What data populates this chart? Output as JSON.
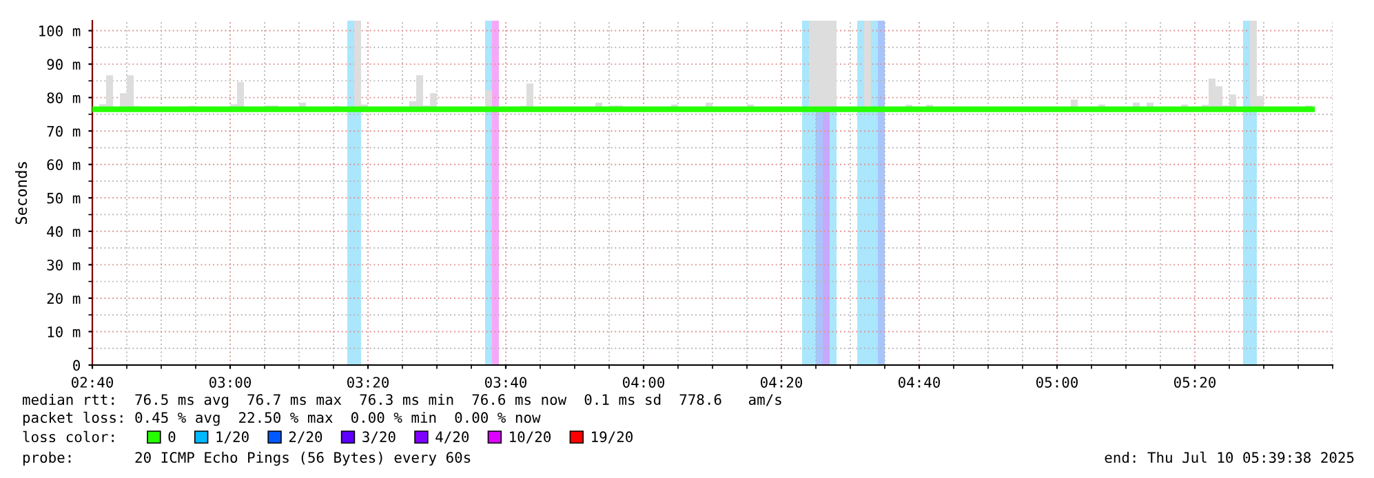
{
  "chart_data": {
    "type": "step",
    "ylabel": "Seconds",
    "x": [
      "2025-07-10T02:40",
      "2025-07-10T02:41",
      "2025-07-10T02:42",
      "2025-07-10T02:43",
      "2025-07-10T02:44",
      "2025-07-10T02:45",
      "2025-07-10T02:46",
      "2025-07-10T02:47",
      "2025-07-10T02:54",
      "2025-07-10T02:55",
      "2025-07-10T02:56",
      "2025-07-10T02:57",
      "2025-07-10T02:58",
      "2025-07-10T03:00",
      "2025-07-10T03:01",
      "2025-07-10T03:02",
      "2025-07-10T03:03",
      "2025-07-10T03:05",
      "2025-07-10T03:07",
      "2025-07-10T03:10",
      "2025-07-10T03:11",
      "2025-07-10T03:15",
      "2025-07-10T03:16",
      "2025-07-10T03:18",
      "2025-07-10T03:19",
      "2025-07-10T03:20",
      "2025-07-10T03:26",
      "2025-07-10T03:27",
      "2025-07-10T03:28",
      "2025-07-10T03:29",
      "2025-07-10T03:30",
      "2025-07-10T03:37",
      "2025-07-10T03:38",
      "2025-07-10T03:42",
      "2025-07-10T03:43",
      "2025-07-10T03:44",
      "2025-07-10T03:53",
      "2025-07-10T03:54",
      "2025-07-10T03:55",
      "2025-07-10T03:57",
      "2025-07-10T04:04",
      "2025-07-10T04:05",
      "2025-07-10T04:09",
      "2025-07-10T04:10",
      "2025-07-10T04:15",
      "2025-07-10T04:16",
      "2025-07-10T04:24",
      "2025-07-10T04:28",
      "2025-07-10T04:32",
      "2025-07-10T04:33",
      "2025-07-10T04:38",
      "2025-07-10T04:39",
      "2025-07-10T04:41",
      "2025-07-10T04:42",
      "2025-07-10T05:02",
      "2025-07-10T05:03",
      "2025-07-10T05:06",
      "2025-07-10T05:07",
      "2025-07-10T05:11",
      "2025-07-10T05:12",
      "2025-07-10T05:13",
      "2025-07-10T05:14",
      "2025-07-10T05:18",
      "2025-07-10T05:19",
      "2025-07-10T05:21",
      "2025-07-10T05:22",
      "2025-07-10T05:23",
      "2025-07-10T05:24",
      "2025-07-10T05:25",
      "2025-07-10T05:26",
      "2025-07-10T05:28",
      "2025-07-10T05:29",
      "2025-07-10T05:30",
      "2025-07-10T05:36",
      "2025-07-10T05:37"
    ],
    "series": [
      {
        "name": "0",
        "color": "#26ff00",
        "values": [
          76.5,
          76.5,
          76.5,
          76.5,
          76.5,
          76.5,
          76.5,
          76.5,
          76.5,
          76.5,
          76.5,
          76.5,
          76.5,
          76.5,
          76.5,
          76.5,
          76.5,
          76.5,
          76.5,
          76.5,
          76.5,
          76.5,
          76.5,
          76.5,
          76.5,
          76.5,
          76.5,
          76.5,
          76.5,
          76.5,
          76.5,
          76.5,
          76.5,
          76.5,
          76.5,
          76.5,
          76.5,
          76.5,
          76.5,
          76.5,
          76.5,
          76.5,
          76.5,
          76.5,
          76.5,
          76.5,
          76.5,
          76.5,
          76.5,
          76.5,
          76.5,
          76.5,
          76.5,
          76.5,
          76.5,
          76.5,
          76.5,
          76.5,
          76.5,
          76.5,
          76.5,
          76.5,
          76.5,
          76.5,
          76.5,
          76.5,
          76.5,
          76.5,
          76.5,
          76.5,
          76.5,
          76.5,
          76.5,
          76.5,
          76.5
        ],
        "lower": [
          76.5,
          76.5,
          76.5,
          76.5,
          76.5,
          76.5,
          76.5,
          76.5,
          76.5,
          76.5,
          76.5,
          76.5,
          76.5,
          76.5,
          76.5,
          76.5,
          76.5,
          76.5,
          76.5,
          76.5,
          76.5,
          76.5,
          76.5,
          76.5,
          76.5,
          76.5,
          76.5,
          76.5,
          76.5,
          76.5,
          76.5,
          76.5,
          76.5,
          76.5,
          76.5,
          76.5,
          76.5,
          76.5,
          76.5,
          76.5,
          76.5,
          76.5,
          76.5,
          76.5,
          76.5,
          76.5,
          76.5,
          76.5,
          76.5,
          76.5,
          76.5,
          76.5,
          76.5,
          76.5,
          76.5,
          76.5,
          76.5,
          76.5,
          76.5,
          76.5,
          76.5,
          76.5,
          76.5,
          76.5,
          76.5,
          76.5,
          76.5,
          76.5,
          76.5,
          76.5,
          76.5,
          76.5,
          76.5,
          76.5,
          76.5
        ],
        "upper": [
          76.5,
          78,
          86.7,
          77,
          81.3,
          86.7,
          77.4,
          76.5,
          77.5,
          77.3,
          76.5,
          77.3,
          76.5,
          78,
          84.6,
          77.3,
          76.5,
          77.6,
          76.5,
          78.5,
          76.5,
          77.5,
          76.5,
          103,
          77.9,
          76.5,
          78.9,
          86.7,
          77.6,
          81.3,
          76.5,
          82.2,
          76.5,
          77.5,
          84.2,
          76.5,
          78.5,
          76.5,
          77.6,
          76.5,
          77.9,
          76.5,
          78.5,
          76.5,
          77.9,
          76.5,
          103,
          76.5,
          103,
          76.5,
          77.8,
          76.5,
          77.8,
          76.5,
          79.4,
          76.5,
          77.9,
          76.5,
          78.5,
          76.5,
          78.5,
          76.5,
          77.9,
          76.5,
          77.8,
          85.7,
          83.4,
          77.6,
          80.9,
          76.5,
          103,
          80.5,
          76.5,
          77.6,
          76.5
        ]
      },
      {
        "name": "1/20",
        "color": "#00b8ff",
        "values": [
          null,
          null,
          null,
          null,
          null,
          null,
          null,
          null,
          null,
          null,
          null,
          null,
          null,
          null,
          null,
          null,
          null,
          null,
          null,
          null,
          null,
          null,
          null,
          null,
          null,
          null,
          null,
          null,
          null,
          null,
          null,
          null,
          null,
          null,
          null,
          null,
          null,
          null,
          null,
          null,
          null,
          null,
          null,
          null,
          null,
          null,
          null,
          null,
          null,
          null,
          null,
          null,
          null,
          null,
          null,
          null,
          null,
          null,
          null,
          null,
          null,
          null,
          null,
          null,
          null,
          null,
          null,
          null,
          null,
          null,
          null,
          null,
          null,
          null,
          null
        ]
      },
      {
        "name": "2/20",
        "color": "#0059ff",
        "values": [
          null,
          null,
          null,
          null,
          null,
          null,
          null,
          null,
          null,
          null,
          null,
          null,
          null,
          null,
          null,
          null,
          null,
          null,
          null,
          null,
          null,
          null,
          null,
          null,
          null,
          null,
          null,
          null,
          null,
          null,
          null,
          null,
          null,
          null,
          null,
          null,
          null,
          null,
          null,
          null,
          null,
          null,
          null,
          null,
          null,
          null,
          null,
          null,
          null,
          null,
          null,
          null,
          null,
          null,
          null,
          null,
          null,
          null,
          null,
          null,
          null,
          null,
          null,
          null,
          null,
          null,
          null,
          null,
          null,
          null,
          null,
          null,
          null,
          null,
          null
        ]
      },
      {
        "name": "3/20",
        "color": "#5e00ff",
        "values": [
          null,
          null,
          null,
          null,
          null,
          null,
          null,
          null,
          null,
          null,
          null,
          null,
          null,
          null,
          null,
          null,
          null,
          null,
          null,
          null,
          null,
          null,
          null,
          null,
          null,
          null,
          null,
          null,
          null,
          null,
          null,
          null,
          null,
          null,
          null,
          null,
          null,
          null,
          null,
          null,
          null,
          null,
          null,
          null,
          null,
          null,
          null,
          null,
          null,
          null,
          null,
          null,
          null,
          null,
          null,
          null,
          null,
          null,
          null,
          null,
          null,
          null,
          null,
          null,
          null,
          null,
          null,
          null,
          null,
          null,
          null,
          null,
          null,
          null,
          null
        ]
      },
      {
        "name": "4/20",
        "color": "#7e00ff",
        "values": [
          null,
          null,
          null,
          null,
          null,
          null,
          null,
          null,
          null,
          null,
          null,
          null,
          null,
          null,
          null,
          null,
          null,
          null,
          null,
          null,
          null,
          null,
          null,
          null,
          null,
          null,
          null,
          null,
          null,
          null,
          null,
          null,
          null,
          null,
          null,
          null,
          null,
          null,
          null,
          null,
          null,
          null,
          null,
          null,
          null,
          null,
          null,
          null,
          null,
          null,
          null,
          null,
          null,
          null,
          null,
          null,
          null,
          null,
          null,
          null,
          null,
          null,
          null,
          null,
          null,
          null,
          null,
          null,
          null,
          null,
          null,
          null,
          null,
          null,
          null
        ]
      },
      {
        "name": "10/20",
        "color": "#dd00ff",
        "values": [
          null,
          null,
          null,
          null,
          null,
          null,
          null,
          null,
          null,
          null,
          null,
          null,
          null,
          null,
          null,
          null,
          null,
          null,
          null,
          null,
          null,
          null,
          null,
          null,
          null,
          null,
          null,
          null,
          null,
          null,
          null,
          null,
          null,
          null,
          null,
          null,
          null,
          null,
          null,
          null,
          null,
          null,
          null,
          null,
          null,
          null,
          null,
          null,
          null,
          null,
          null,
          null,
          null,
          null,
          null,
          null,
          null,
          null,
          null,
          null,
          null,
          null,
          null,
          null,
          null,
          null,
          null,
          null,
          null,
          null,
          null,
          null,
          null,
          null,
          null
        ]
      },
      {
        "name": "19/20",
        "color": "#ff0000",
        "values": [
          null,
          null,
          null,
          null,
          null,
          null,
          null,
          null,
          null,
          null,
          null,
          null,
          null,
          null,
          null,
          null,
          null,
          null,
          null,
          null,
          null,
          null,
          null,
          null,
          null,
          null,
          null,
          null,
          null,
          null,
          null,
          null,
          null,
          null,
          null,
          null,
          null,
          null,
          null,
          null,
          null,
          null,
          null,
          null,
          null,
          null,
          null,
          null,
          null,
          null,
          null,
          null,
          null,
          null,
          null,
          null,
          null,
          null,
          null,
          null,
          null,
          null,
          null,
          null,
          null,
          null,
          null,
          null,
          null,
          null,
          null,
          null,
          null,
          null,
          null
        ]
      }
    ],
    "bands": [
      {
        "axis": "x",
        "from": "2025-07-10T03:17",
        "to": "2025-07-10T03:19",
        "color": "#aae6fc"
      },
      {
        "axis": "x",
        "from": "2025-07-10T03:37",
        "to": "2025-07-10T03:38",
        "color": "#aae6fc"
      },
      {
        "axis": "x",
        "from": "2025-07-10T03:38",
        "to": "2025-07-10T03:39",
        "color": "#f5a8f8"
      },
      {
        "axis": "x",
        "from": "2025-07-10T04:23",
        "to": "2025-07-10T04:25",
        "color": "#aae6fc"
      },
      {
        "axis": "x",
        "from": "2025-07-10T04:25",
        "to": "2025-07-10T04:26",
        "color": "#a8c4fc"
      },
      {
        "axis": "x",
        "from": "2025-07-10T04:26",
        "to": "2025-07-10T04:27",
        "color": "#c8a8fc"
      },
      {
        "axis": "x",
        "from": "2025-07-10T04:27",
        "to": "2025-07-10T04:28",
        "color": "#aae6fc"
      },
      {
        "axis": "x",
        "from": "2025-07-10T04:31",
        "to": "2025-07-10T04:34",
        "color": "#aae6fc"
      },
      {
        "axis": "x",
        "from": "2025-07-10T04:34",
        "to": "2025-07-10T04:35",
        "color": "#a8c4fc"
      },
      {
        "axis": "x",
        "from": "2025-07-10T05:27",
        "to": "2025-07-10T05:29",
        "color": "#aae6fc"
      }
    ],
    "legend": "bottom",
    "legend_title": "loss color:",
    "xlim": [
      "2025-07-10T02:40",
      "2025-07-10T05:40"
    ],
    "xticks": [
      {
        "value": "2025-07-10T02:40",
        "label": "02:40"
      },
      {
        "value": "2025-07-10T02:45",
        "label": null
      },
      {
        "value": "2025-07-10T02:50",
        "label": null
      },
      {
        "value": "2025-07-10T02:55",
        "label": null
      },
      {
        "value": "2025-07-10T03:00",
        "label": "03:00"
      },
      {
        "value": "2025-07-10T03:05",
        "label": null
      },
      {
        "value": "2025-07-10T03:10",
        "label": null
      },
      {
        "value": "2025-07-10T03:15",
        "label": null
      },
      {
        "value": "2025-07-10T03:20",
        "label": "03:20"
      },
      {
        "value": "2025-07-10T03:25",
        "label": null
      },
      {
        "value": "2025-07-10T03:30",
        "label": null
      },
      {
        "value": "2025-07-10T03:35",
        "label": null
      },
      {
        "value": "2025-07-10T03:40",
        "label": "03:40"
      },
      {
        "value": "2025-07-10T03:45",
        "label": null
      },
      {
        "value": "2025-07-10T03:50",
        "label": null
      },
      {
        "value": "2025-07-10T03:55",
        "label": null
      },
      {
        "value": "2025-07-10T04:00",
        "label": "04:00"
      },
      {
        "value": "2025-07-10T04:05",
        "label": null
      },
      {
        "value": "2025-07-10T04:10",
        "label": null
      },
      {
        "value": "2025-07-10T04:15",
        "label": null
      },
      {
        "value": "2025-07-10T04:20",
        "label": "04:20"
      },
      {
        "value": "2025-07-10T04:25",
        "label": null
      },
      {
        "value": "2025-07-10T04:30",
        "label": null
      },
      {
        "value": "2025-07-10T04:35",
        "label": null
      },
      {
        "value": "2025-07-10T04:40",
        "label": "04:40"
      },
      {
        "value": "2025-07-10T04:45",
        "label": null
      },
      {
        "value": "2025-07-10T04:50",
        "label": null
      },
      {
        "value": "2025-07-10T04:55",
        "label": null
      },
      {
        "value": "2025-07-10T05:00",
        "label": "05:00"
      },
      {
        "value": "2025-07-10T05:05",
        "label": null
      },
      {
        "value": "2025-07-10T05:10",
        "label": null
      },
      {
        "value": "2025-07-10T05:15",
        "label": null
      },
      {
        "value": "2025-07-10T05:20",
        "label": "05:20"
      },
      {
        "value": "2025-07-10T05:25",
        "label": null
      },
      {
        "value": "2025-07-10T05:30",
        "label": null
      },
      {
        "value": "2025-07-10T05:35",
        "label": null
      },
      {
        "value": "2025-07-10T05:40",
        "label": null
      }
    ],
    "ylim": [
      0,
      103
    ],
    "yticks": [
      0,
      {
        "value": 5,
        "label": null
      },
      {
        "value": 10,
        "label": "10 m"
      },
      {
        "value": 15,
        "label": null
      },
      {
        "value": 20,
        "label": "20 m"
      },
      {
        "value": 25,
        "label": null
      },
      {
        "value": 30,
        "label": "30 m"
      },
      {
        "value": 35,
        "label": null
      },
      {
        "value": 40,
        "label": "40 m"
      },
      {
        "value": 45,
        "label": null
      },
      {
        "value": 50,
        "label": "50 m"
      },
      {
        "value": 55,
        "label": null
      },
      {
        "value": 60,
        "label": "60 m"
      },
      {
        "value": 65,
        "label": null
      },
      {
        "value": 70,
        "label": "70 m"
      },
      {
        "value": 75,
        "label": null
      },
      {
        "value": 80,
        "label": "80 m"
      },
      {
        "value": 85,
        "label": null
      },
      {
        "value": 90,
        "label": "90 m"
      },
      {
        "value": 95,
        "label": null
      },
      {
        "value": 100,
        "label": "100 m"
      }
    ],
    "grid": true,
    "annotations": [
      "median rtt:  76.5 ms avg  76.7 ms max  76.3 ms min  76.6 ms now  0.1 ms sd  778.6   am/s",
      "packet loss: 0.45 % avg  22.50 % max  0.00 % min  0.00 % now",
      "probe:       20 ICMP Echo Pings (56 Bytes) every 60s",
      "end: Thu Jul 10 05:39:38 2025"
    ]
  }
}
